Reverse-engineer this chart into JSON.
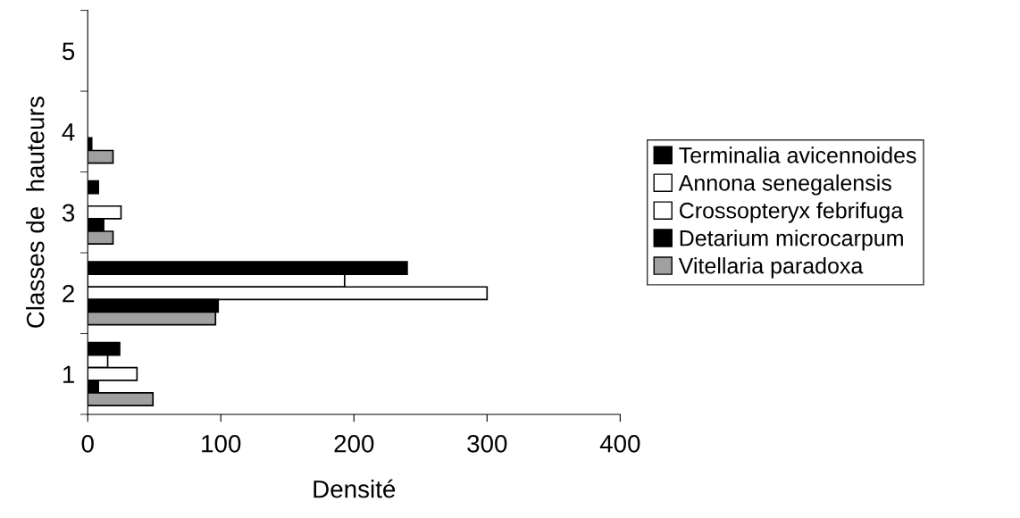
{
  "chart_data": {
    "type": "bar",
    "orientation": "horizontal",
    "xlabel": "Densité",
    "ylabel": "Classes de  hauteurs",
    "categories": [
      "5",
      "4",
      "3",
      "2",
      "1"
    ],
    "series": [
      {
        "name": "Terminalia avicennoides",
        "color": "#000000",
        "values": [
          0,
          0,
          8,
          240,
          24
        ]
      },
      {
        "name": "Annona senegalensis",
        "color": "#ffffff",
        "values": [
          0,
          0,
          0,
          193,
          15
        ]
      },
      {
        "name": "Crossopteryx febrifuga",
        "color": "#ffffff",
        "values": [
          0,
          0,
          25,
          300,
          37
        ]
      },
      {
        "name": "Detarium microcarpum",
        "color": "#000000",
        "values": [
          0,
          3,
          12,
          98,
          8
        ]
      },
      {
        "name": "Vitellaria paradoxa",
        "color": "#a0a0a0",
        "values": [
          0,
          19,
          19,
          96,
          49
        ]
      }
    ],
    "xlim": [
      0,
      400
    ],
    "xticks": [
      0,
      100,
      200,
      300,
      400
    ],
    "grid": false,
    "legend": "right"
  }
}
